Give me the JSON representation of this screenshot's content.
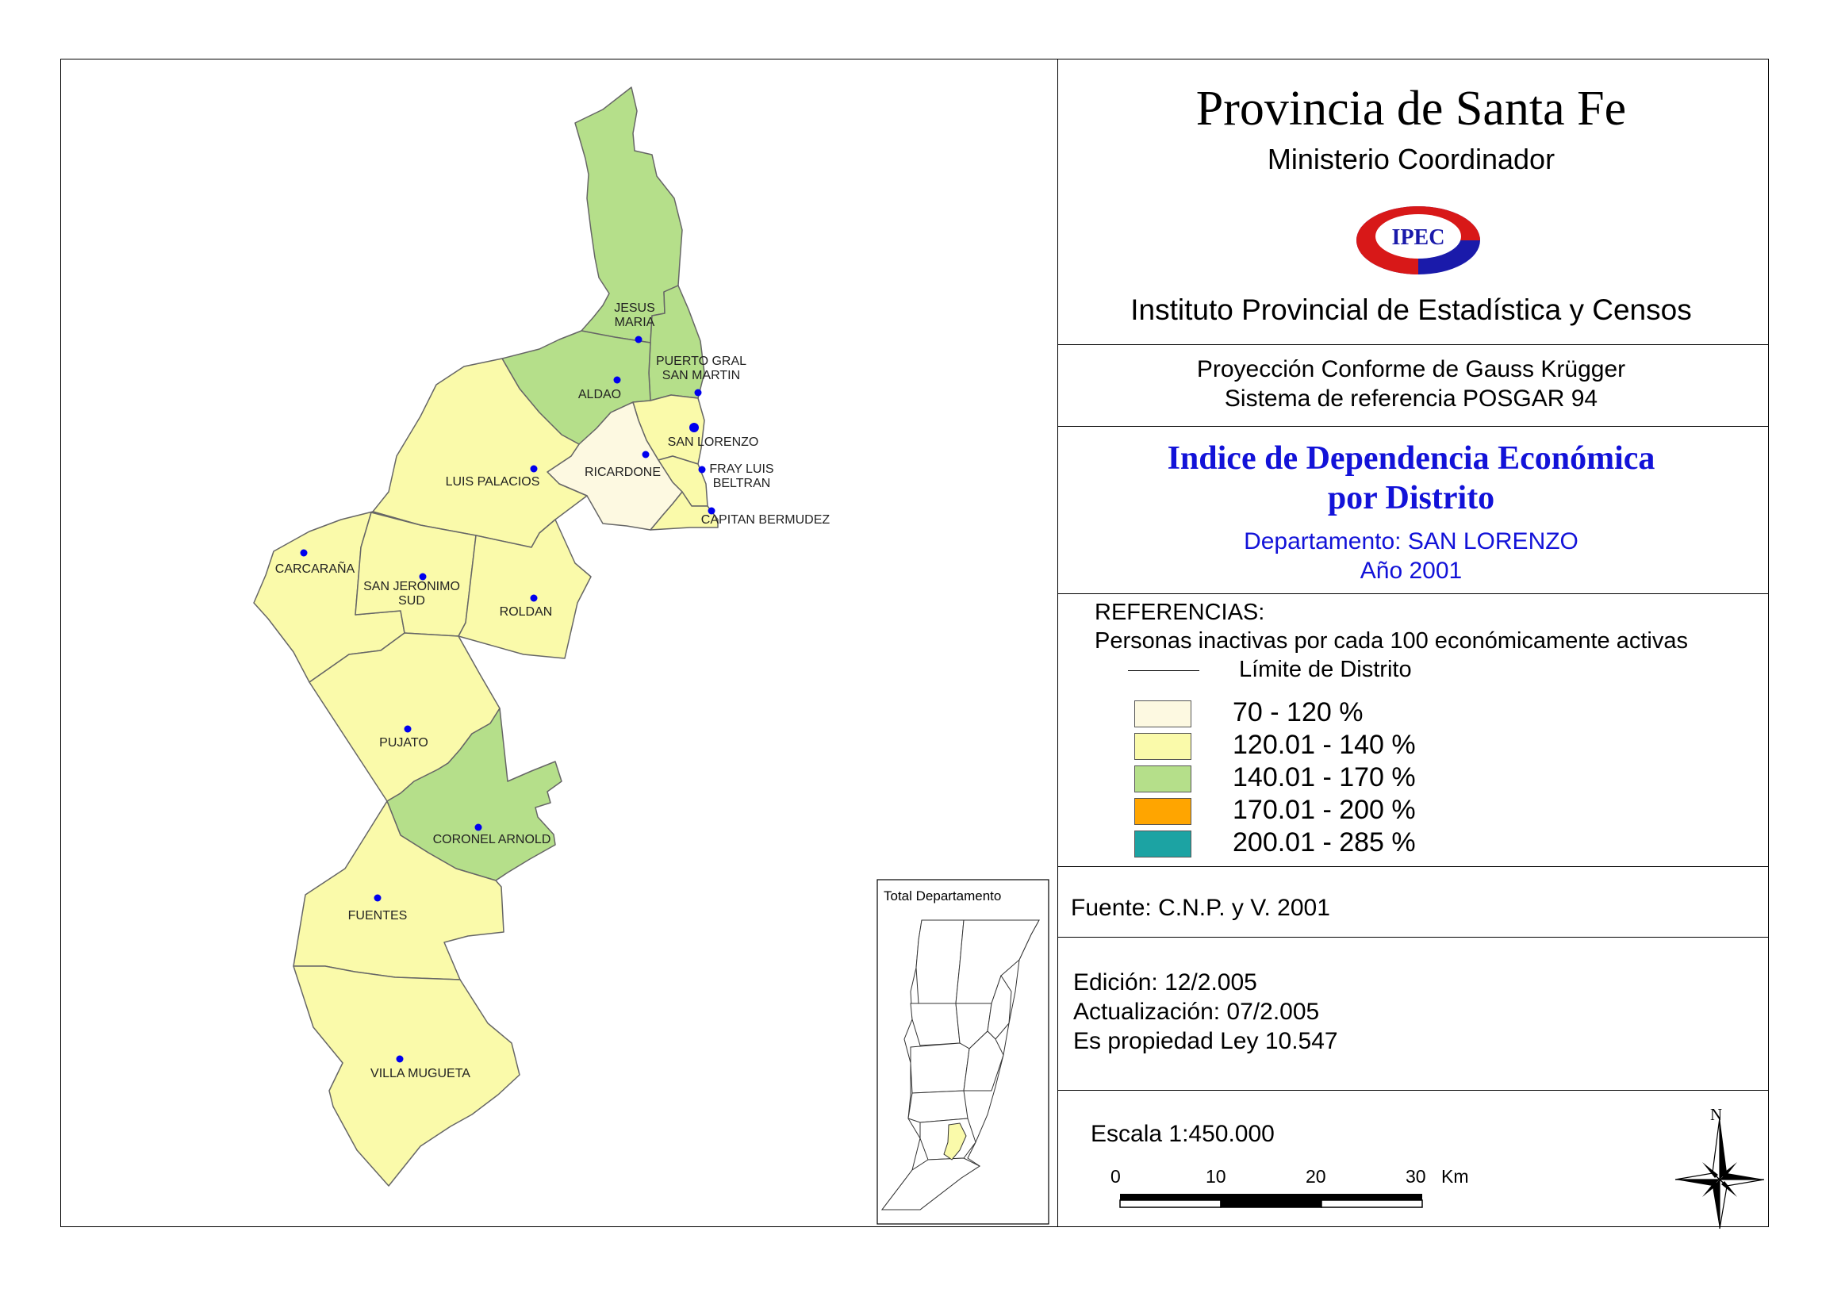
{
  "header": {
    "title": "Provincia de Santa Fe",
    "ministry": "Ministerio Coordinador",
    "logo_text": "IPEC",
    "institute": "Instituto Provincial de Estadística y Censos"
  },
  "projection": {
    "line1": "Proyección Conforme de Gauss Krügger",
    "line2": "Sistema de referencia POSGAR 94"
  },
  "map_title": {
    "line1": "Indice de Dependencia Económica",
    "line2": "por Distrito",
    "department": "Departamento:  SAN LORENZO",
    "year": "Año 2001"
  },
  "legend": {
    "heading": "REFERENCIAS:",
    "description": "Personas inactivas por cada 100 económicamente activas",
    "boundary_label": "Límite de  Distrito",
    "classes": [
      {
        "label": "70 - 120 %",
        "color": "#fdf9e1"
      },
      {
        "label": "120.01 - 140 %",
        "color": "#fafaaa"
      },
      {
        "label": "140.01 - 170 %",
        "color": "#b5df8a"
      },
      {
        "label": "170.01 - 200 %",
        "color": "#ffa500"
      },
      {
        "label": "200.01 - 285 %",
        "color": "#1ca3a3"
      }
    ]
  },
  "source": "Fuente:  C.N.P. y V. 2001",
  "edition": {
    "edicion": "Edición:  12/2.005",
    "actualizacion": "Actualización:  07/2.005",
    "propiedad": "Es propiedad Ley 10.547"
  },
  "scale": {
    "text": "Escala 1:450.000",
    "ticks": [
      "0",
      "10",
      "20",
      "30"
    ],
    "unit": "Km"
  },
  "north_label": "N",
  "inset_title": "Total Departamento",
  "districts": [
    {
      "name": "JESUS MARIA",
      "label_lines": [
        "JESUS",
        "MARIA"
      ],
      "class": "140.01 - 170 %"
    },
    {
      "name": "PUERTO GRAL SAN MARTIN",
      "label_lines": [
        "PUERTO GRAL",
        "SAN MARTIN"
      ],
      "class": "140.01 - 170 %"
    },
    {
      "name": "ALDAO",
      "label_lines": [
        "ALDAO"
      ],
      "class": "140.01 - 170 %"
    },
    {
      "name": "SAN LORENZO",
      "label_lines": [
        "SAN LORENZO"
      ],
      "class": "120.01 - 140 %"
    },
    {
      "name": "RICARDONE",
      "label_lines": [
        "RICARDONE"
      ],
      "class": "70 - 120 %"
    },
    {
      "name": "FRAY LUIS BELTRAN",
      "label_lines": [
        "FRAY LUIS",
        "BELTRAN"
      ],
      "class": "120.01 - 140 %"
    },
    {
      "name": "CAPITAN BERMUDEZ",
      "label_lines": [
        "CAPITAN BERMUDEZ"
      ],
      "class": "120.01 - 140 %"
    },
    {
      "name": "LUIS PALACIOS",
      "label_lines": [
        "LUIS PALACIOS"
      ],
      "class": "120.01 - 140 %"
    },
    {
      "name": "CARCARAÑA",
      "label_lines": [
        "CARCARAÑA"
      ],
      "class": "120.01 - 140 %"
    },
    {
      "name": "SAN JERONIMO SUD",
      "label_lines": [
        "SAN JERONIMO",
        "SUD"
      ],
      "class": "120.01 - 140 %"
    },
    {
      "name": "ROLDAN",
      "label_lines": [
        "ROLDAN"
      ],
      "class": "120.01 - 140 %"
    },
    {
      "name": "PUJATO",
      "label_lines": [
        "PUJATO"
      ],
      "class": "120.01 - 140 %"
    },
    {
      "name": "CORONEL ARNOLD",
      "label_lines": [
        "CORONEL ARNOLD"
      ],
      "class": "140.01 - 170 %"
    },
    {
      "name": "FUENTES",
      "label_lines": [
        "FUENTES"
      ],
      "class": "120.01 - 140 %"
    },
    {
      "name": "VILLA MUGUETA",
      "label_lines": [
        "VILLA MUGUETA"
      ],
      "class": "120.01 - 140 %"
    }
  ]
}
